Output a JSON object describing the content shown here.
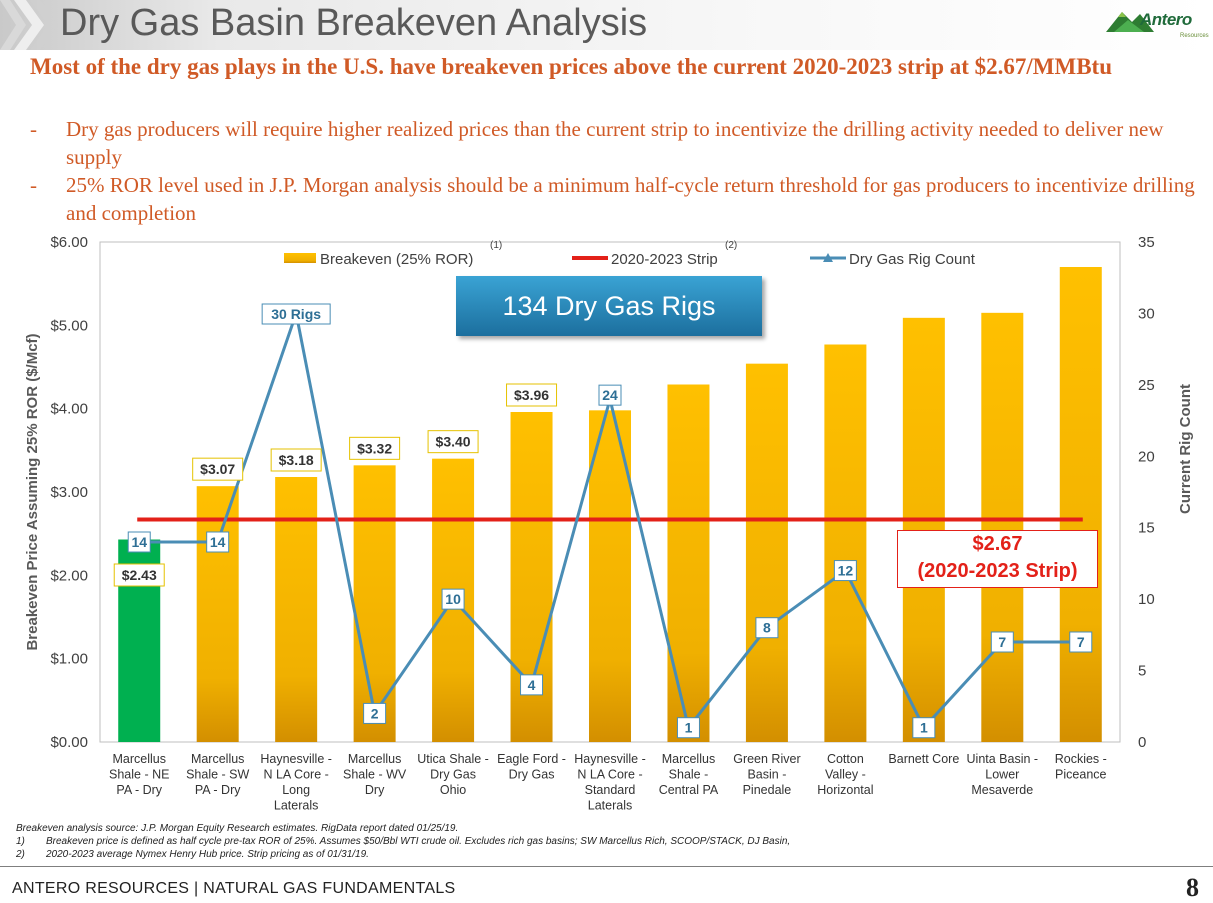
{
  "header": {
    "title": "Dry Gas Basin Breakeven Analysis",
    "logo_text": "Antero",
    "logo_sub": "Resources"
  },
  "headline": "Most of the dry gas plays in the U.S. have breakeven prices above the current 2020-2023 strip at $2.67/MMBtu",
  "bullets": [
    {
      "dash": "-",
      "text": "Dry gas producers will require higher realized prices than the current strip to incentivize the drilling activity needed to deliver new supply"
    },
    {
      "dash": "-",
      "text": "25% ROR level used in J.P. Morgan analysis should be a minimum half-cycle return threshold for gas producers to incentivize drilling and completion"
    }
  ],
  "chart_data": {
    "type": "bar",
    "categories": [
      [
        "Marcellus",
        "Shale - NE",
        "PA - Dry"
      ],
      [
        "Marcellus",
        "Shale - SW",
        "PA - Dry"
      ],
      [
        "Haynesville -",
        "N LA Core -",
        "Long",
        "Laterals"
      ],
      [
        "Marcellus",
        "Shale - WV",
        "Dry"
      ],
      [
        "Utica Shale -",
        "Dry Gas",
        "Ohio"
      ],
      [
        "Eagle Ford -",
        "Dry Gas"
      ],
      [
        "Haynesville -",
        "N LA Core -",
        "Standard",
        "Laterals"
      ],
      [
        "Marcellus",
        "Shale -",
        "Central PA"
      ],
      [
        "Green River",
        "Basin -",
        "Pinedale"
      ],
      [
        "Cotton",
        "Valley -",
        "Horizontal"
      ],
      [
        "Barnett Core"
      ],
      [
        "Uinta Basin -",
        "Lower",
        "Mesaverde"
      ],
      [
        "Rockies -",
        "Piceance"
      ]
    ],
    "series": [
      {
        "name": "Breakeven (25% ROR)",
        "superscript": "(1)",
        "axis": "left",
        "values": [
          2.43,
          3.07,
          3.18,
          3.32,
          3.4,
          3.96,
          3.98,
          4.29,
          4.54,
          4.77,
          5.09,
          5.15,
          5.7
        ],
        "labels": [
          "$2.43",
          "$3.07",
          "$3.18",
          "$3.32",
          "$3.40",
          "$3.96",
          null,
          null,
          null,
          null,
          null,
          null,
          null
        ],
        "color": "#ffc000",
        "highlight_color": "#00b050"
      },
      {
        "name": "Dry Gas Rig Count",
        "axis": "right",
        "values": [
          14,
          14,
          30,
          2,
          10,
          4,
          24,
          1,
          8,
          12,
          1,
          7,
          7
        ],
        "labels": [
          "14",
          "14",
          "30 Rigs",
          "2",
          "10",
          "4",
          "24",
          "1",
          "8",
          "12",
          "1",
          "7",
          "7"
        ],
        "color": "#4a8db5"
      },
      {
        "name": "2020-2023 Strip",
        "superscript": "(2)",
        "axis": "left",
        "value": 2.67,
        "color": "#e32119"
      }
    ],
    "left_axis": {
      "label": "Breakeven Price Assuming 25% ROR ($/Mcf)",
      "ylim": [
        0,
        6
      ],
      "ticks": [
        "$0.00",
        "$1.00",
        "$2.00",
        "$3.00",
        "$4.00",
        "$5.00",
        "$6.00"
      ]
    },
    "right_axis": {
      "label": "Current Rig Count",
      "ylim": [
        0,
        35
      ],
      "ticks": [
        "0",
        "5",
        "10",
        "15",
        "20",
        "25",
        "30",
        "35"
      ]
    },
    "legend_position": "top",
    "callout": "134 Dry Gas Rigs",
    "strip_annotation": [
      "$2.67",
      "(2020-2023 Strip)"
    ]
  },
  "footnotes": [
    {
      "num": "",
      "text": "Breakeven analysis source: J.P. Morgan Equity Research estimates.  RigData report dated 01/25/19."
    },
    {
      "num": "1)",
      "text": "Breakeven price is defined as half cycle pre-tax ROR of 25%. Assumes $50/Bbl WTI crude oil. Excludes rich gas basins; SW Marcellus Rich, SCOOP/STACK, DJ Basin,"
    },
    {
      "num": "2)",
      "text": "2020-2023 average Nymex Henry Hub price.  Strip pricing as of 01/31/19."
    }
  ],
  "footer": {
    "left": "ANTERO RESOURCES | NATURAL GAS FUNDAMENTALS",
    "page": "8"
  },
  "colors": {
    "accent": "#d05a26",
    "bar": "#ffc000",
    "bar_highlight": "#00b050",
    "strip": "#e32119",
    "rig_line": "#4a8db5",
    "callout": "#1f7fb5"
  }
}
